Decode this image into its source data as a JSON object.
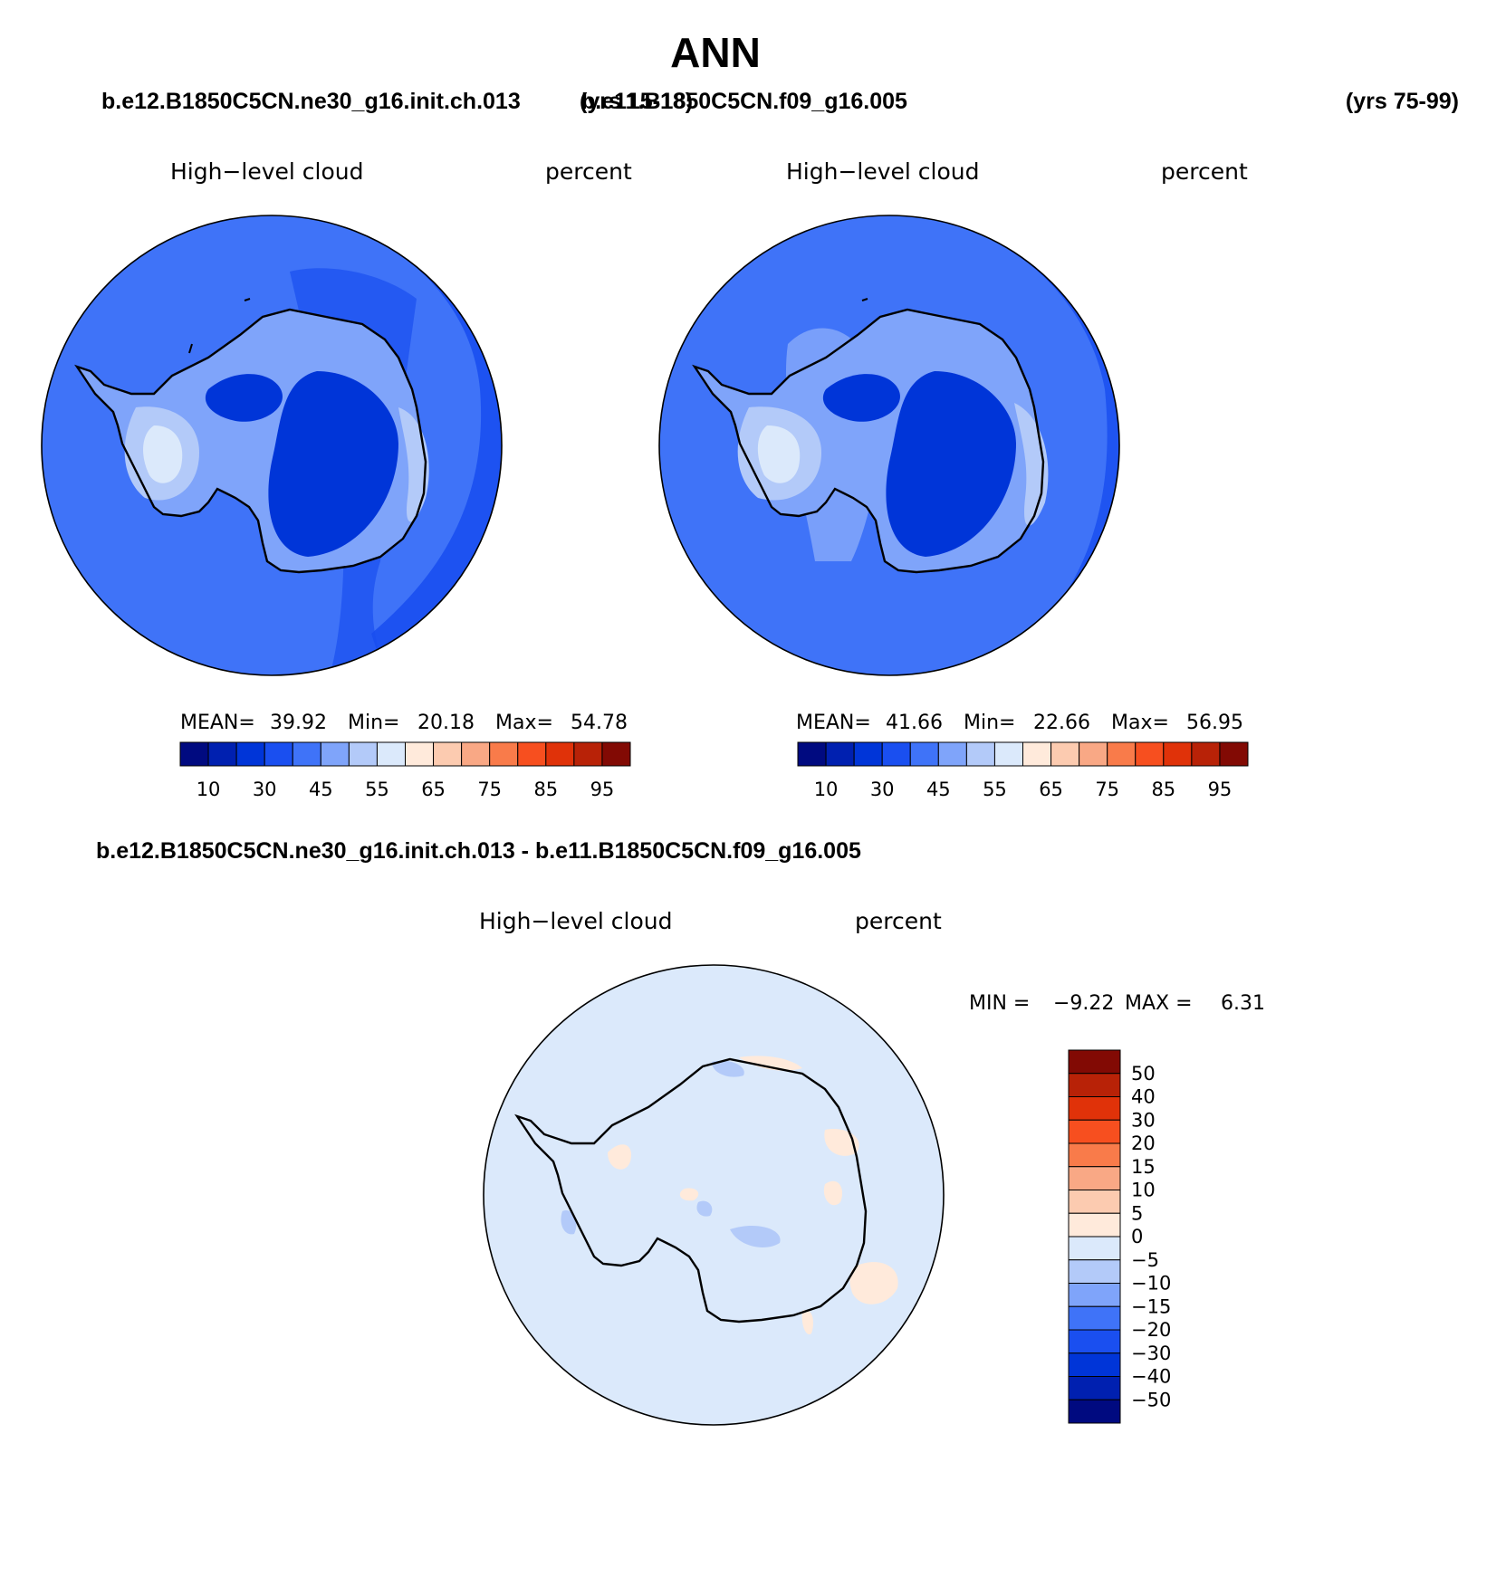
{
  "title": "ANN",
  "panels": [
    {
      "case": "b.e12.B1850C5CN.ne30_g16.init.ch.013",
      "years": "(yrs 15-18)",
      "variable": "High−level cloud",
      "units": "percent",
      "stats": {
        "mean_label": "MEAN=",
        "mean": "39.92",
        "min_label": "Min=",
        "min": "20.18",
        "max_label": "Max=",
        "max": "54.78"
      }
    },
    {
      "case": "b.e11.B1850C5CN.f09_g16.005",
      "years": "(yrs 75-99)",
      "variable": "High−level cloud",
      "units": "percent",
      "stats": {
        "mean_label": "MEAN=",
        "mean": "41.66",
        "min_label": "Min=",
        "min": "22.66",
        "max_label": "Max=",
        "max": "56.95"
      }
    }
  ],
  "abs_colorbar": {
    "colors": [
      "#000a80",
      "#0020b0",
      "#0035d8",
      "#1a4ff0",
      "#3f73f8",
      "#7fa4fa",
      "#b3caf9",
      "#dbe9fb",
      "#ffeadb",
      "#fccbb0",
      "#f9a885",
      "#f97b4a",
      "#f74f1f",
      "#e03209",
      "#b82207",
      "#820a04"
    ],
    "labels": [
      "10",
      "30",
      "45",
      "55",
      "65",
      "75",
      "85",
      "95"
    ]
  },
  "diff_panel": {
    "title": "b.e12.B1850C5CN.ne30_g16.init.ch.013 - b.e11.B1850C5CN.f09_g16.005",
    "variable": "High−level cloud",
    "units": "percent",
    "min_label": "MIN =",
    "min": "−9.22",
    "max_label": "MAX =",
    "max": "6.31"
  },
  "diff_colorbar": {
    "colors": [
      "#820a04",
      "#b82207",
      "#e03209",
      "#f74f1f",
      "#f97b4a",
      "#f9a885",
      "#fccbb0",
      "#ffeadb",
      "#dbe9fb",
      "#b3caf9",
      "#7fa4fa",
      "#3f73f8",
      "#1a4ff0",
      "#0035d8",
      "#0020b0",
      "#000a80"
    ],
    "labels": [
      "50",
      "40",
      "30",
      "20",
      "15",
      "10",
      "5",
      "0",
      "−5",
      "−10",
      "−15",
      "−20",
      "−30",
      "−40",
      "−50"
    ]
  },
  "map_colors": {
    "ocean_abs": "#3f73f8",
    "ocean_abs_2": "#1a4ff0",
    "light_1": "#7fa4fa",
    "light_2": "#b3caf9",
    "lightest": "#dbe9fb",
    "dark_1": "#0035d8",
    "diff_bg": "#dbe9fb",
    "diff_pos": "#ffeadb",
    "diff_neg": "#b3caf9",
    "coast": "#000000"
  }
}
